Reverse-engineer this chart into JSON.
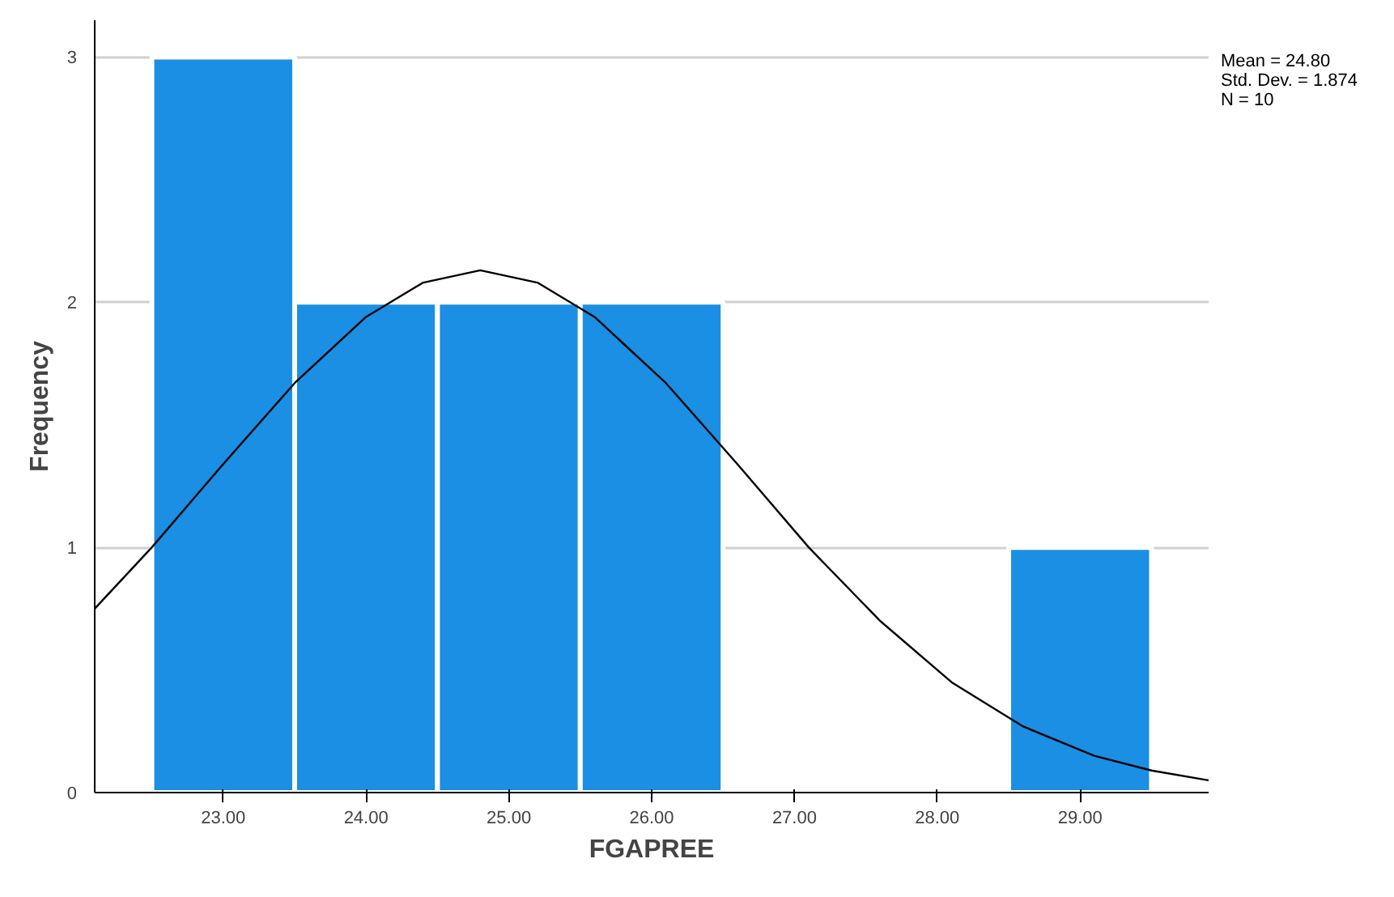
{
  "chart_data": {
    "type": "histogram",
    "xlabel": "FGAPREE",
    "ylabel": "Frequency",
    "bins": [
      22.5,
      23.5,
      24.5,
      25.5,
      26.5,
      27.5,
      28.5,
      29.5
    ],
    "values": [
      3,
      2,
      2,
      2,
      0,
      0,
      1
    ],
    "color": "#1a8fe3",
    "series": [
      {
        "type": "line",
        "color": "#000000",
        "x": [
          22.1,
          22.5,
          23.0,
          23.5,
          24.0,
          24.4,
          24.8,
          25.2,
          25.6,
          26.1,
          26.6,
          27.1,
          27.6,
          28.1,
          28.6,
          29.1,
          29.5,
          29.9
        ],
        "values": [
          0.75,
          1.0,
          1.34,
          1.67,
          1.94,
          2.08,
          2.13,
          2.08,
          1.94,
          1.67,
          1.34,
          1.0,
          0.7,
          0.45,
          0.27,
          0.15,
          0.09,
          0.05
        ]
      }
    ],
    "xlim": [
      22.1,
      29.9
    ],
    "ylim": [
      0,
      3.15
    ],
    "xticks": [
      {
        "value": 23,
        "label": "23.00"
      },
      {
        "value": 24,
        "label": "24.00"
      },
      {
        "value": 25,
        "label": "25.00"
      },
      {
        "value": 26,
        "label": "26.00"
      },
      {
        "value": 27,
        "label": "27.00"
      },
      {
        "value": 28,
        "label": "28.00"
      },
      {
        "value": 29,
        "label": "29.00"
      }
    ],
    "yticks": [
      0,
      1,
      2,
      3
    ],
    "grid": "y",
    "annotations": [
      "Mean = 24.80",
      "Std. Dev. = 1.874",
      "N = 10"
    ]
  }
}
